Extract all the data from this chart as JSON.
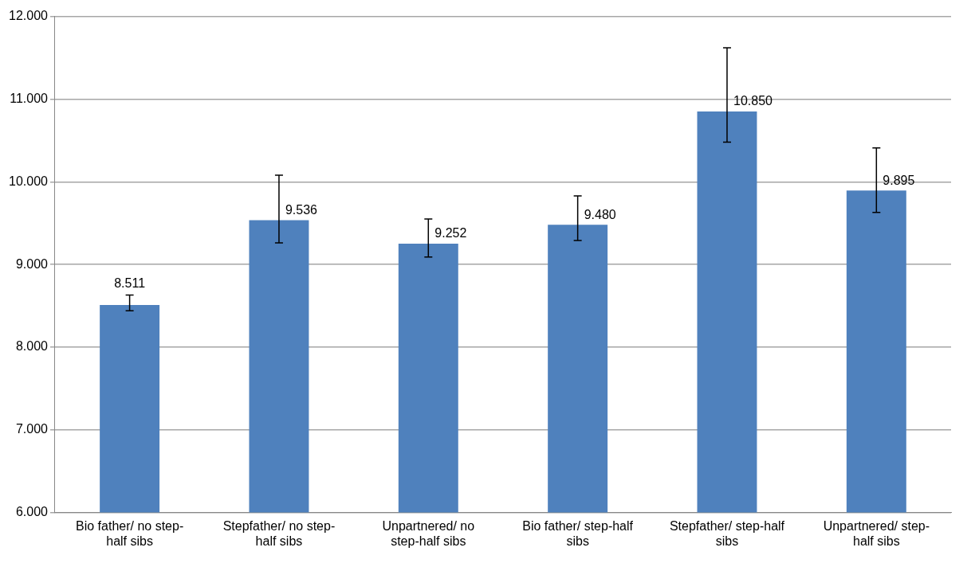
{
  "chart_data": {
    "type": "bar",
    "categories": [
      "Bio father/ no step-half sibs",
      "Stepfather/ no step-half sibs",
      "Unpartnered/ no step-half sibs",
      "Bio father/ step-half sibs",
      "Stepfather/ step-half sibs",
      "Unpartnered/ step-half sibs"
    ],
    "values": [
      8.511,
      9.536,
      9.252,
      9.48,
      10.85,
      9.895
    ],
    "errors": [
      [
        8.44,
        8.63
      ],
      [
        9.26,
        10.08
      ],
      [
        9.09,
        9.55
      ],
      [
        9.29,
        9.83
      ],
      [
        10.48,
        11.62
      ],
      [
        9.63,
        10.41
      ]
    ],
    "color": "#4f81bd",
    "ylim": [
      6,
      12
    ],
    "yticks": [
      {
        "value": 6,
        "label": "6.000"
      },
      {
        "value": 7,
        "label": "7.000"
      },
      {
        "value": 8,
        "label": "8.000"
      },
      {
        "value": 9,
        "label": "9.000"
      },
      {
        "value": 10,
        "label": "10.000"
      },
      {
        "value": 11,
        "label": "11.000"
      },
      {
        "value": 12,
        "label": "12.000"
      }
    ],
    "grid": "y",
    "value_labels": [
      "8.511",
      "9.536",
      "9.252",
      "9.480",
      "10.850",
      "9.895"
    ]
  }
}
